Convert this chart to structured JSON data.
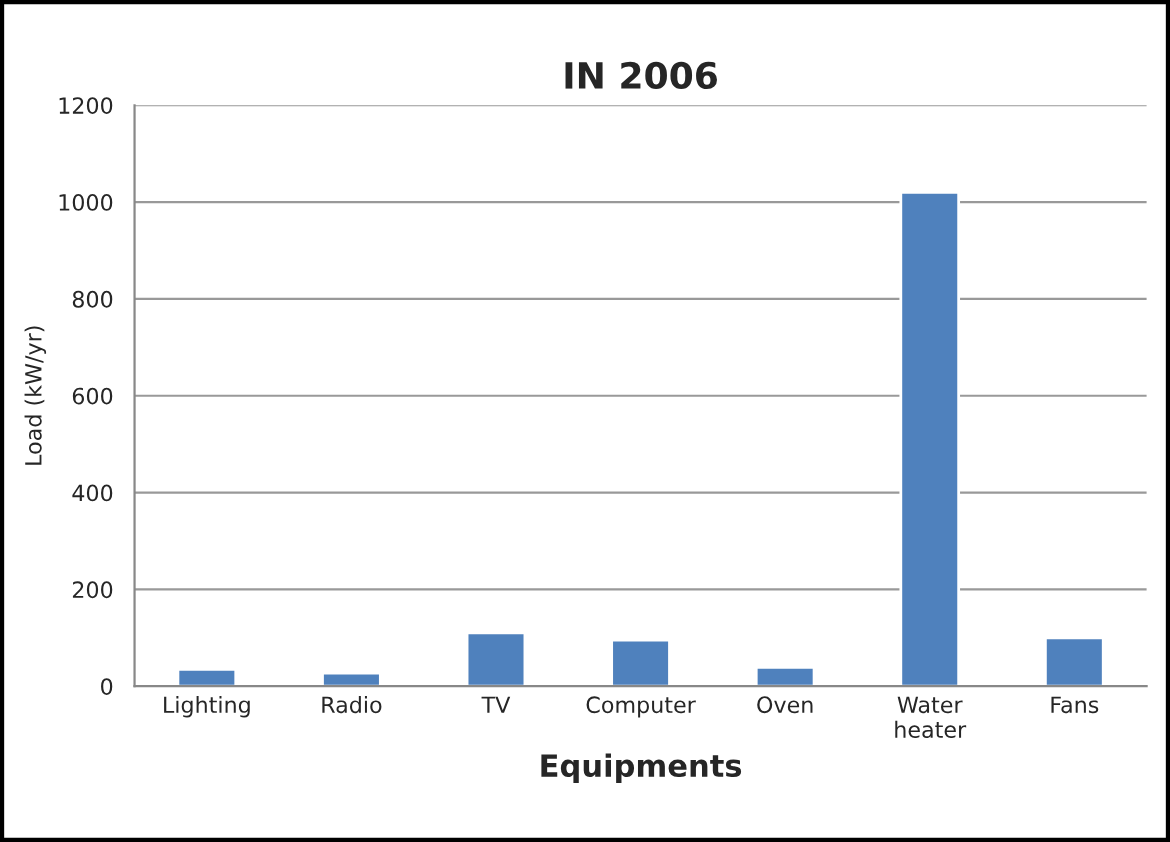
{
  "chart_data": {
    "type": "bar",
    "title": "IN 2006",
    "xlabel": "Equipments",
    "ylabel": "Load (kW/yr)",
    "categories": [
      "Lighting",
      "Radio",
      "TV",
      "Computer",
      "Oven",
      "Water\nheater",
      "Fans"
    ],
    "values": [
      35,
      27,
      110,
      95,
      39,
      1020,
      100
    ],
    "color": "#4f81bd",
    "ylim": [
      0,
      1200
    ],
    "yticks": [
      0,
      200,
      400,
      600,
      800,
      1000,
      1200
    ],
    "grid": "y"
  }
}
